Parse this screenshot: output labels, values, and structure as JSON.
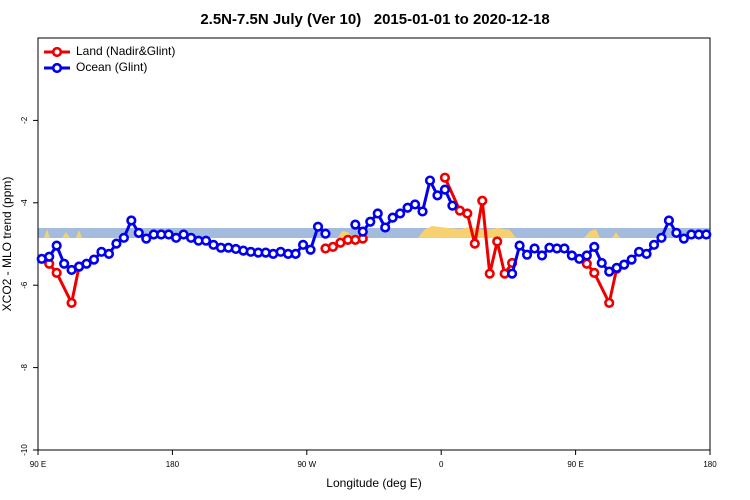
{
  "chart_data": {
    "type": "line",
    "title": "2.5N-7.5N July (Ver 10)   2015-01-01 to 2020-12-18",
    "x_label": "Longitude (deg E)",
    "y_label": "XCO2 - MLO trend (ppm)",
    "xlim": [
      90,
      540
    ],
    "ylim": [
      -10,
      0
    ],
    "xticks": [
      {
        "value": 90,
        "label": "90 E"
      },
      180,
      {
        "value": 270,
        "label": "90 W"
      },
      {
        "value": 360,
        "label": "0"
      },
      {
        "value": 450,
        "label": "90 E"
      },
      {
        "value": 540,
        "label": "180"
      }
    ],
    "yticks": [
      -10,
      -8,
      -6,
      -4,
      -2
    ],
    "legend": "top-left",
    "series": [
      {
        "name": "Land (Nadir&Glint)",
        "color": "#ee0000",
        "x": [
          97.5,
          102.5,
          112.5,
          117.5,
          null,
          282.5,
          287.5,
          292.5,
          297.5,
          302.5,
          307.5,
          null,
          362.5,
          372.5,
          377.5,
          382.5,
          387.5,
          392.5,
          397.5,
          402.5,
          407.5,
          null,
          457.5,
          462.5,
          472.5,
          477.5
        ],
        "values": [
          -5.48,
          -5.7,
          -6.43,
          -5.55,
          null,
          -5.11,
          -5.07,
          -4.97,
          -4.9,
          -4.9,
          -4.87,
          null,
          -3.39,
          -4.19,
          -4.26,
          -4.99,
          -3.95,
          -5.72,
          -4.94,
          -5.72,
          -5.46,
          null,
          -5.48,
          -5.7,
          -6.43,
          -5.6
        ]
      },
      {
        "name": "Ocean (Glint)",
        "color": "#0000ee",
        "x": [
          92.5,
          97.5,
          102.5,
          107.5,
          112.5,
          117.5,
          122.5,
          127.5,
          132.5,
          137.5,
          142.5,
          147.5,
          152.5,
          157.5,
          162.5,
          167.5,
          172.5,
          177.5,
          182.5,
          187.5,
          192.5,
          197.5,
          202.5,
          207.5,
          212.5,
          217.5,
          222.5,
          227.5,
          232.5,
          237.5,
          242.5,
          247.5,
          252.5,
          257.5,
          262.5,
          267.5,
          272.5,
          277.5,
          282.5,
          287.5,
          292.5,
          297.5,
          302.5,
          307.5,
          312.5,
          317.5,
          322.5,
          327.5,
          332.5,
          337.5,
          342.5,
          347.5,
          352.5,
          357.5,
          362.5,
          367.5,
          372.5,
          377.5,
          382.5,
          387.5,
          392.5,
          397.5,
          402.5,
          407.5,
          412.5,
          417.5,
          422.5,
          427.5,
          432.5,
          437.5,
          442.5,
          447.5,
          452.5,
          457.5,
          462.5,
          467.5,
          472.5,
          477.5,
          482.5,
          487.5,
          492.5,
          497.5,
          502.5,
          507.5,
          512.5,
          517.5,
          522.5,
          527.5,
          532.5,
          537.5
        ],
        "values": [
          -5.36,
          -5.31,
          -5.04,
          -5.48,
          -5.63,
          -5.55,
          -5.48,
          -5.38,
          -5.19,
          -5.24,
          -4.99,
          -4.85,
          -4.43,
          -4.73,
          -4.87,
          -4.77,
          -4.77,
          -4.77,
          -4.85,
          -4.77,
          -4.85,
          -4.92,
          -4.92,
          -5.02,
          -5.09,
          -5.09,
          -5.12,
          -5.16,
          -5.19,
          -5.21,
          -5.21,
          -5.24,
          -5.19,
          -5.24,
          -5.24,
          -5.02,
          -5.14,
          -4.58,
          -4.75,
          null,
          null,
          null,
          -4.53,
          -4.7,
          -4.46,
          -4.26,
          -4.6,
          -4.36,
          -4.26,
          -4.12,
          -4.04,
          -4.21,
          -3.46,
          -3.82,
          -3.68,
          -4.07,
          null,
          null,
          null,
          null,
          null,
          null,
          null,
          -5.72,
          -5.04,
          -5.26,
          -5.11,
          -5.28,
          -5.09,
          -5.11,
          -5.11,
          -5.28,
          -5.36,
          -5.28,
          -5.07,
          -5.46,
          -5.67,
          -5.58,
          -5.5,
          -5.38,
          -5.19,
          -5.24,
          -5.02,
          -4.85,
          -4.43,
          -4.73,
          -4.87,
          -4.77,
          -4.77,
          -4.77
        ]
      }
    ]
  }
}
